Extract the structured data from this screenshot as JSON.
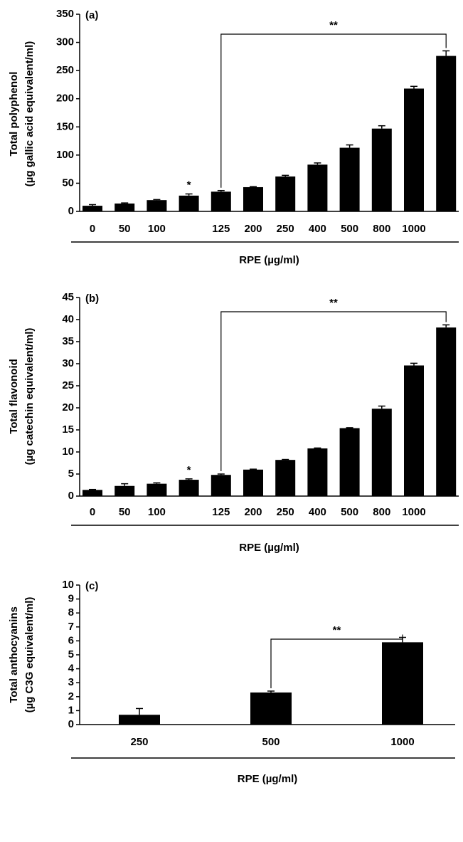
{
  "chart_data": [
    {
      "type": "bar",
      "panel_label": "(a)",
      "ylabel": [
        "Total polyphenol",
        "(µg gallic acid equivalent/ml)"
      ],
      "xlabel": "RPE (µg/ml)",
      "categories": [
        "0",
        "50",
        "100",
        null,
        "125",
        "200",
        "250",
        "400",
        "500",
        "800",
        "1000",
        null
      ],
      "values": [
        10,
        14,
        20,
        28,
        35,
        43,
        62,
        83,
        113,
        147,
        218,
        276
      ],
      "errors": [
        2,
        1,
        1,
        3,
        2,
        1,
        2,
        3,
        5,
        5,
        4,
        9
      ],
      "color": "#000000",
      "ylim": [
        0,
        350
      ],
      "yticks": [
        0,
        50,
        100,
        150,
        200,
        250,
        300,
        350
      ],
      "annotations": [
        "*",
        "**"
      ]
    },
    {
      "type": "bar",
      "panel_label": "(b)",
      "ylabel": [
        "Total flavonoid",
        "(µg catechin equivalent/ml)"
      ],
      "xlabel": "RPE (µg/ml)",
      "categories": [
        "0",
        "50",
        "100",
        null,
        "125",
        "200",
        "250",
        "400",
        "500",
        "800",
        "1000",
        null
      ],
      "values": [
        1.4,
        2.3,
        2.8,
        3.7,
        4.8,
        6.0,
        8.2,
        10.8,
        15.4,
        19.8,
        29.6,
        38.2
      ],
      "errors": [
        0.1,
        0.5,
        0.2,
        0.2,
        0.2,
        0.1,
        0.1,
        0.1,
        0.1,
        0.6,
        0.5,
        0.6
      ],
      "color": "#000000",
      "ylim": [
        0,
        45
      ],
      "yticks": [
        0,
        5,
        10,
        15,
        20,
        25,
        30,
        35,
        40,
        45
      ],
      "annotations": [
        "*",
        "**"
      ]
    },
    {
      "type": "bar",
      "panel_label": "(c)",
      "ylabel": [
        "Total anthocyanins",
        "(µg C3G equivalent/ml)"
      ],
      "xlabel": "RPE (µg/ml)",
      "categories": [
        "250",
        "500",
        "1000"
      ],
      "values": [
        0.7,
        2.3,
        5.9
      ],
      "errors": [
        0.45,
        0.1,
        0.35
      ],
      "color": "#000000",
      "ylim": [
        0,
        10
      ],
      "yticks": [
        0,
        1,
        2,
        3,
        4,
        5,
        6,
        7,
        8,
        9,
        10
      ],
      "annotations": [
        "**"
      ]
    }
  ]
}
